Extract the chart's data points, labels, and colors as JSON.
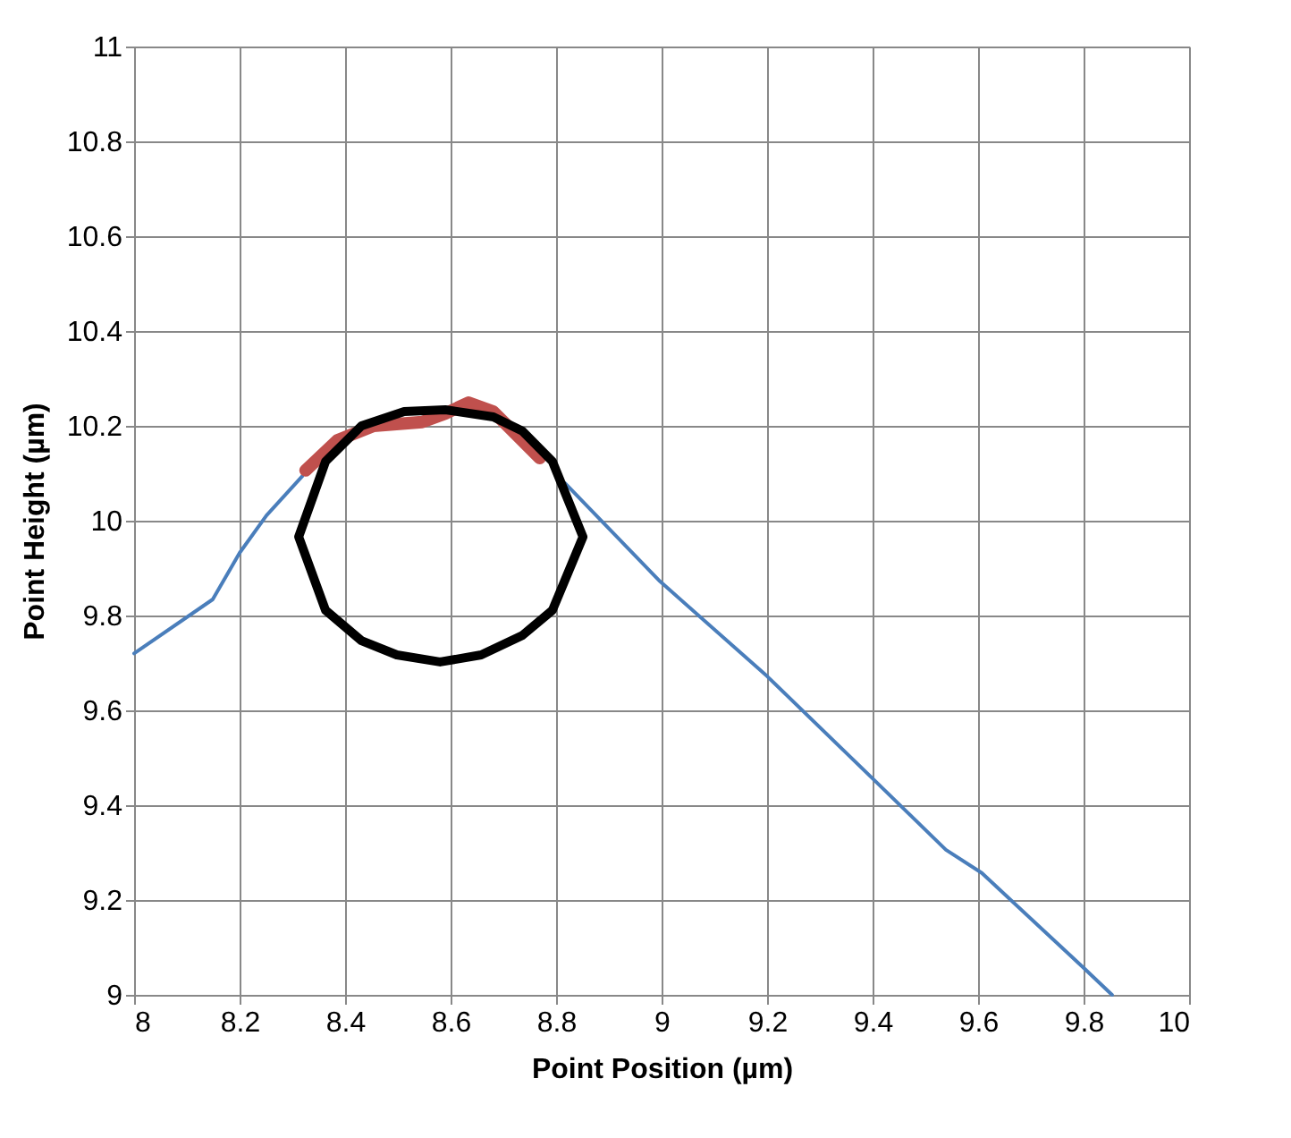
{
  "chart_data": {
    "type": "line",
    "xlabel": "Point Position (µm)",
    "ylabel": "Point Height (µm)",
    "xlim": [
      8,
      10
    ],
    "xticks": [
      8,
      8.2,
      8.4,
      8.6,
      8.8,
      9,
      9.2,
      9.4,
      9.6,
      9.8,
      10
    ],
    "ylim": [
      9,
      11
    ],
    "yticks": [
      9,
      9.2,
      9.4,
      9.6,
      9.8,
      10,
      10.2,
      10.4,
      10.6,
      10.8,
      11
    ],
    "grid": true,
    "legend": false,
    "marker": "none",
    "line_style": "solid",
    "series": [
      {
        "color": "#4a7ebb",
        "x": [
          8,
          8.149,
          8.2,
          8.251,
          8.319,
          8.386,
          8.454,
          8.546,
          8.59,
          8.634,
          8.681,
          8.725,
          8.769,
          8.793,
          8.817,
          8.997,
          9.2,
          9.403,
          9.539,
          9.607,
          9.8,
          9.854
        ],
        "values": [
          9.72,
          9.834,
          9.932,
          10.011,
          10.094,
          null,
          null,
          null,
          null,
          null,
          null,
          null,
          null,
          null,
          10.079,
          9.872,
          9.672,
          9.453,
          9.306,
          9.257,
          9.057,
          9.0
        ]
      },
      {
        "color": "#c0504d",
        "x": [
          8.325,
          8.386,
          8.454,
          8.546,
          8.59,
          8.634,
          8.681,
          8.725,
          8.769
        ],
        "values": [
          10.106,
          10.17,
          10.2,
          10.208,
          10.226,
          10.249,
          10.23,
          10.181,
          10.132
        ]
      }
    ]
  }
}
